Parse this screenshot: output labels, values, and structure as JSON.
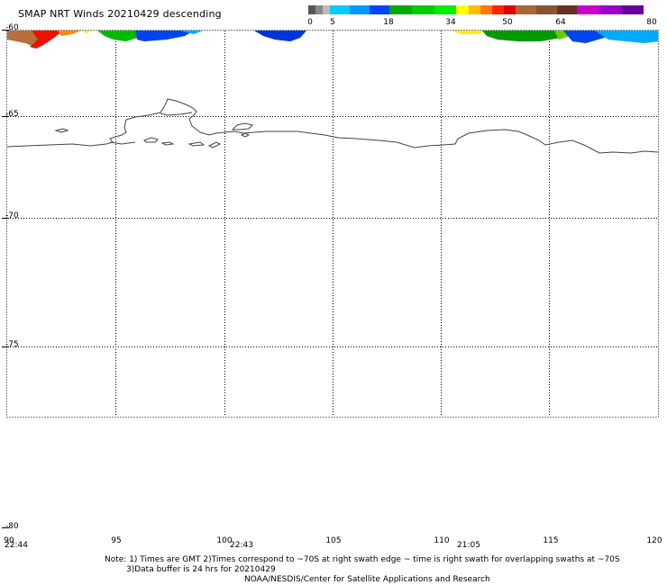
{
  "header": {
    "title": "SMAP NRT Winds  20210429 descending"
  },
  "colorbar": {
    "colors": [
      "#555555",
      "#888888",
      "#bbbbbb",
      "#00ccff",
      "#0099ff",
      "#0044ff",
      "#00aa00",
      "#00cc00",
      "#00ee00",
      "#ffff00",
      "#ffbb00",
      "#ff7700",
      "#ff2200",
      "#dd0000",
      "#aa6633",
      "#885533",
      "#663322",
      "#cc00cc",
      "#9900cc",
      "#660099"
    ],
    "ticks": [
      "0",
      "5",
      "18",
      "34",
      "50",
      "64",
      "80"
    ]
  },
  "map": {
    "lat_labels": [
      "-60",
      "-65",
      "-70",
      "-75",
      "-80"
    ],
    "lon_labels": [
      "90",
      "95",
      "100",
      "105",
      "110",
      "115",
      "120"
    ],
    "swath_times": [
      "22:44",
      "22:43",
      "21:05"
    ]
  },
  "notes": {
    "line1": "Note: 1) Times are GMT 2)Times correspond to ~70S at right swath edge ~ time is right swath for overlapping swaths at ~70S",
    "line2": "3)Data buffer is 24 hrs for 20210429",
    "line3": "NOAA/NESDIS/Center for Satellite Applications and Research"
  }
}
